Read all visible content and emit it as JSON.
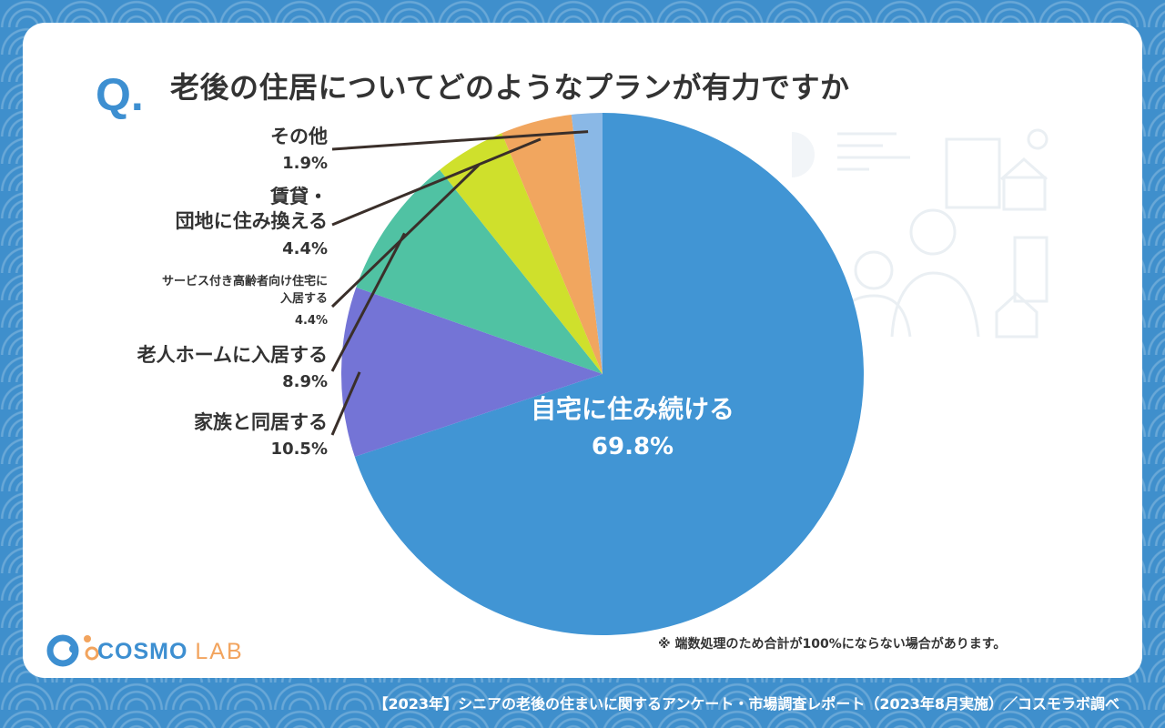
{
  "question_mark": "Q.",
  "title": "老後の住居についてどのようなプランが有力ですか",
  "note": "※ 端数処理のため合計が100%にならない場合があります。",
  "footer": "【2023年】シニアの老後の住まいに関するアンケート・市場調査レポート（2023年8月実施）／コスモラボ調べ",
  "logo": {
    "main": "COSMO",
    "sub": "LAB"
  },
  "colors": {
    "accent": "#3d8fd1",
    "background": "#3f8fcc",
    "text": "#333333",
    "leader_line": "#3a2f2a"
  },
  "chart_data": {
    "type": "pie",
    "title": "老後の住居についてどのようなプランが有力ですか",
    "start": "12 o'clock",
    "direction": "clockwise",
    "slices": [
      {
        "label": "自宅に住み続ける",
        "value": 69.8,
        "value_label": "69.8%",
        "color": "#4195d4"
      },
      {
        "label": "家族と同居する",
        "value": 10.5,
        "value_label": "10.5%",
        "color": "#7474d6"
      },
      {
        "label": "老人ホームに入居する",
        "value": 8.9,
        "value_label": "8.9%",
        "color": "#50c2a3"
      },
      {
        "label": "サービス付き高齢者向け住宅に入居する",
        "value": 4.4,
        "value_label": "4.4%",
        "color": "#cfe02c"
      },
      {
        "label": "賃貸・団地に住み換える",
        "value": 4.4,
        "value_label": "4.4%",
        "color": "#f1a65f"
      },
      {
        "label": "その他",
        "value": 1.9,
        "value_label": "1.9%",
        "color": "#8ab8e6"
      }
    ],
    "labels": {
      "home": {
        "line1": "自宅に住み続ける",
        "pct": "69.8%"
      },
      "family": {
        "line1": "家族と同居する",
        "pct": "10.5%"
      },
      "nursing": {
        "line1": "老人ホームに入居する",
        "pct": "8.9%"
      },
      "service": {
        "line1": "サービス付き高齢者向け住宅に",
        "line2": "入居する",
        "pct": "4.4%"
      },
      "rental": {
        "line1": "賃貸・",
        "line2": "団地に住み換える",
        "pct": "4.4%"
      },
      "other": {
        "line1": "その他",
        "pct": "1.9%"
      }
    }
  }
}
